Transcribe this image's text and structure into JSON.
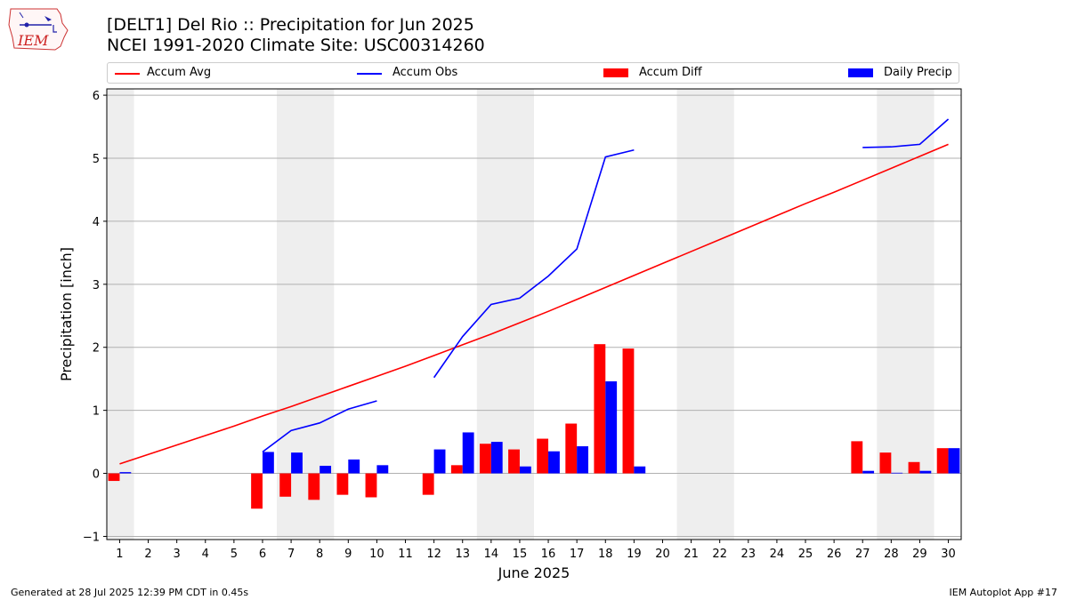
{
  "header": {
    "logo_text": "IEM",
    "title_line1": "[DELT1] Del Rio :: Precipitation for Jun 2025",
    "title_line2": "NCEI 1991-2020 Climate Site: USC00314260"
  },
  "footer": {
    "left": "Generated at 28 Jul 2025 12:39 PM CDT in 0.45s",
    "right": "IEM Autoplot App #17"
  },
  "colors": {
    "accum_avg": "#ff0000",
    "accum_obs": "#0000ff",
    "accum_diff": "#ff0000",
    "daily_precip": "#0000ff",
    "weekend_shade": "#eeeeee",
    "grid": "#b0b0b0"
  },
  "chart_data": {
    "type": "bar",
    "xlabel": "June 2025",
    "ylabel": "Precipitation [inch]",
    "ylim": [
      -1.05,
      6.1
    ],
    "yticks": [
      -1,
      0,
      1,
      2,
      3,
      4,
      5,
      6
    ],
    "grid": "horizontal",
    "legend_placement": "top",
    "x": [
      1,
      2,
      3,
      4,
      5,
      6,
      7,
      8,
      9,
      10,
      11,
      12,
      13,
      14,
      15,
      16,
      17,
      18,
      19,
      20,
      21,
      22,
      23,
      24,
      25,
      26,
      27,
      28,
      29,
      30
    ],
    "shaded_days": [
      [
        1,
        1
      ],
      [
        7,
        8
      ],
      [
        14,
        15
      ],
      [
        21,
        22
      ],
      [
        28,
        29
      ]
    ],
    "series": [
      {
        "name": "Accum Avg",
        "kind": "line",
        "values": [
          0.15,
          0.3,
          0.45,
          0.6,
          0.75,
          0.91,
          1.06,
          1.22,
          1.38,
          1.54,
          1.7,
          1.87,
          2.04,
          2.21,
          2.39,
          2.57,
          2.76,
          2.95,
          3.14,
          3.33,
          3.52,
          3.71,
          3.9,
          4.09,
          4.28,
          4.46,
          4.65,
          4.84,
          5.03,
          5.22
        ]
      },
      {
        "name": "Accum Obs",
        "kind": "line",
        "values": [
          null,
          null,
          null,
          null,
          null,
          0.34,
          0.68,
          0.8,
          1.02,
          1.15,
          null,
          1.52,
          2.17,
          2.68,
          2.78,
          3.13,
          3.56,
          5.02,
          5.13,
          null,
          null,
          null,
          null,
          null,
          null,
          null,
          5.17,
          5.18,
          5.22,
          5.62
        ]
      },
      {
        "name": "Accum Diff",
        "kind": "bar",
        "values": [
          -0.12,
          null,
          null,
          null,
          null,
          -0.56,
          -0.37,
          -0.42,
          -0.34,
          -0.38,
          null,
          -0.34,
          0.13,
          0.47,
          0.38,
          0.55,
          0.79,
          2.05,
          1.98,
          null,
          null,
          null,
          null,
          null,
          null,
          null,
          0.51,
          0.33,
          0.18,
          0.4
        ]
      },
      {
        "name": "Daily Precip",
        "kind": "bar",
        "values": [
          0.02,
          null,
          null,
          null,
          null,
          0.34,
          0.33,
          0.12,
          0.22,
          0.13,
          null,
          0.38,
          0.65,
          0.5,
          0.11,
          0.35,
          0.43,
          1.46,
          0.11,
          null,
          null,
          null,
          null,
          null,
          null,
          null,
          0.04,
          0.01,
          0.04,
          0.4
        ]
      }
    ]
  }
}
